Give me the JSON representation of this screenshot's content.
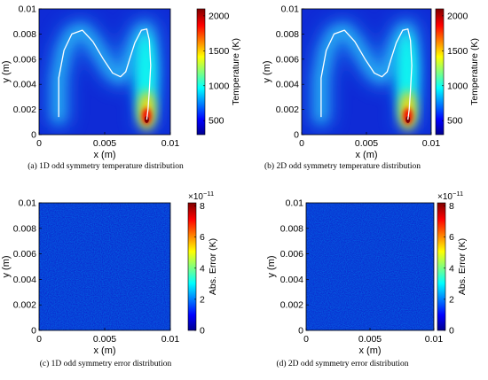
{
  "figure": {
    "panels": [
      {
        "caption": "(a)  1D odd symmetry temperature distribution",
        "kind": "temperature",
        "xlabel": "x (m)",
        "ylabel": "y (m)",
        "colorbar_label": "Temperature (K)",
        "colorbar_ticks": [
          "500",
          "1000",
          "1500",
          "2000"
        ],
        "x_ticks": [
          "0",
          "0.005",
          "0.01"
        ],
        "y_ticks": [
          "0",
          "0.002",
          "0.004",
          "0.006",
          "0.008",
          "0.01"
        ]
      },
      {
        "caption": "(b)  2D odd symmetry temperature distribution",
        "kind": "temperature",
        "xlabel": "x (m)",
        "ylabel": "y (m)",
        "colorbar_label": "Temperature (K)",
        "colorbar_ticks": [
          "500",
          "1000",
          "1500",
          "2000"
        ],
        "x_ticks": [
          "0",
          "0.005",
          "0.01"
        ],
        "y_ticks": [
          "0",
          "0.002",
          "0.004",
          "0.006",
          "0.008",
          "0.01"
        ]
      },
      {
        "caption": "(c)  1D odd symmetry error distribution",
        "kind": "error",
        "xlabel": "x (m)",
        "ylabel": "y (m)",
        "colorbar_label": "Abs. Error (K)",
        "colorbar_exponent": "×10",
        "colorbar_exponent_power": "−11",
        "colorbar_ticks": [
          "0",
          "2",
          "4",
          "6",
          "8"
        ],
        "x_ticks": [
          "0",
          "0.005",
          "0.01"
        ],
        "y_ticks": [
          "0",
          "0.002",
          "0.004",
          "0.006",
          "0.008",
          "0.01"
        ]
      },
      {
        "caption": "(d)  2D odd symmetry error distribution",
        "kind": "error",
        "xlabel": "x (m)",
        "ylabel": "y (m)",
        "colorbar_label": "Abs. Error (K)",
        "colorbar_exponent": "×10",
        "colorbar_exponent_power": "−11",
        "colorbar_ticks": [
          "0",
          "2",
          "4",
          "6",
          "8"
        ],
        "x_ticks": [
          "0",
          "0.005",
          "0.01"
        ],
        "y_ticks": [
          "0",
          "0.002",
          "0.004",
          "0.006",
          "0.008",
          "0.01"
        ]
      }
    ]
  },
  "chart_data": [
    {
      "type": "heatmap",
      "xlabel": "x (m)",
      "ylabel": "y (m)",
      "xlim": [
        0,
        0.01
      ],
      "ylim": [
        0,
        0.01
      ],
      "colorbar": {
        "label": "Temperature (K)",
        "range": [
          300,
          2100
        ],
        "ticks": [
          500,
          1000,
          1500,
          2000
        ],
        "colormap": "jet"
      },
      "hot_spot": {
        "x": 0.0082,
        "y": 0.0012,
        "value": 2100
      },
      "path": {
        "x": [
          0.0015,
          0.0015,
          0.0019,
          0.0025,
          0.0033,
          0.0041,
          0.0049,
          0.0056,
          0.0062,
          0.0066,
          0.0069,
          0.0073,
          0.0078,
          0.0082,
          0.0084,
          0.0085,
          0.0084,
          0.0083,
          0.0082
        ],
        "y": [
          0.0014,
          0.0045,
          0.0067,
          0.008,
          0.0083,
          0.0074,
          0.006,
          0.0049,
          0.0046,
          0.005,
          0.006,
          0.0073,
          0.0083,
          0.0084,
          0.0075,
          0.0055,
          0.0035,
          0.002,
          0.0012
        ]
      },
      "grid": false
    },
    {
      "type": "heatmap",
      "xlabel": "x (m)",
      "ylabel": "y (m)",
      "xlim": [
        0,
        0.01
      ],
      "ylim": [
        0,
        0.01
      ],
      "colorbar": {
        "label": "Temperature (K)",
        "range": [
          300,
          2100
        ],
        "ticks": [
          500,
          1000,
          1500,
          2000
        ],
        "colormap": "jet"
      },
      "hot_spot": {
        "x": 0.0082,
        "y": 0.0012,
        "value": 2100
      },
      "path": {
        "x": [
          0.0015,
          0.0015,
          0.0019,
          0.0025,
          0.0033,
          0.0041,
          0.0049,
          0.0056,
          0.0062,
          0.0066,
          0.0069,
          0.0073,
          0.0078,
          0.0082,
          0.0084,
          0.0085,
          0.0084,
          0.0083,
          0.0082
        ],
        "y": [
          0.0014,
          0.0045,
          0.0067,
          0.008,
          0.0083,
          0.0074,
          0.006,
          0.0049,
          0.0046,
          0.005,
          0.006,
          0.0073,
          0.0083,
          0.0084,
          0.0075,
          0.0055,
          0.0035,
          0.002,
          0.0012
        ]
      },
      "grid": false
    },
    {
      "type": "heatmap",
      "xlabel": "x (m)",
      "ylabel": "y (m)",
      "xlim": [
        0,
        0.01
      ],
      "ylim": [
        0,
        0.01
      ],
      "colorbar": {
        "label": "Abs. Error (K)",
        "range": [
          0,
          8.2e-11
        ],
        "ticks": [
          0,
          2,
          4,
          6,
          8
        ],
        "scale_exponent": -11,
        "colormap": "jet"
      },
      "noise_range": [
        0,
        1.2e-11
      ],
      "grid": false
    },
    {
      "type": "heatmap",
      "xlabel": "x (m)",
      "ylabel": "y (m)",
      "xlim": [
        0,
        0.01
      ],
      "ylim": [
        0,
        0.01
      ],
      "colorbar": {
        "label": "Abs. Error (K)",
        "range": [
          0,
          8.2e-11
        ],
        "ticks": [
          0,
          2,
          4,
          6,
          8
        ],
        "scale_exponent": -11,
        "colormap": "jet"
      },
      "noise_range": [
        0,
        1.2e-11
      ],
      "grid": false
    }
  ]
}
